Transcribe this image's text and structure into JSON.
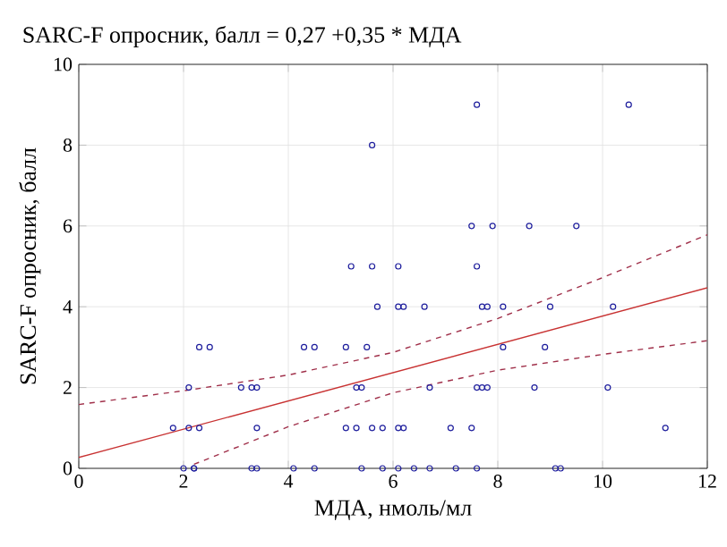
{
  "chart_data": {
    "type": "scatter",
    "title": "SARC-F опросник, балл = 0,27 +0,35 * МДА",
    "xlabel": "МДА, нмоль/мл",
    "ylabel": "SARC-F опросник, балл",
    "xlim": [
      0,
      12
    ],
    "ylim": [
      0,
      10
    ],
    "xticks": [
      0,
      2,
      4,
      6,
      8,
      10,
      12
    ],
    "yticks": [
      0,
      2,
      4,
      6,
      8,
      10
    ],
    "grid": true,
    "series": [
      {
        "marker": "circle",
        "color": "#1c1c9c",
        "x": [
          5.6,
          5.2,
          5.6,
          5.7,
          2.3,
          2.5,
          4.3,
          4.5,
          5.1,
          5.5,
          2.1,
          3.1,
          3.3,
          3.4,
          5.3,
          5.4,
          1.8,
          2.1,
          2.3,
          3.4,
          5.1,
          5.3,
          5.6,
          5.8,
          2.0,
          2.2,
          2.2,
          3.3,
          3.4,
          4.1,
          4.5,
          5.4,
          5.8,
          7.6,
          10.5,
          7.5,
          7.9,
          8.6,
          9.5,
          6.1,
          7.6,
          6.1,
          6.2,
          6.6,
          7.7,
          7.8,
          8.1,
          9.0,
          10.2,
          8.1,
          8.9,
          6.7,
          7.6,
          7.7,
          7.8,
          8.7,
          10.1,
          6.1,
          6.2,
          7.1,
          7.5,
          11.2,
          6.1,
          6.4,
          6.7,
          7.2,
          7.6,
          9.1,
          9.2
        ],
        "values": [
          8,
          5,
          5,
          4,
          3,
          3,
          3,
          3,
          3,
          3,
          2,
          2,
          2,
          2,
          2,
          2,
          1,
          1,
          1,
          1,
          1,
          1,
          1,
          1,
          0,
          0,
          0,
          0,
          0,
          0,
          0,
          0,
          0,
          9,
          9,
          6,
          6,
          6,
          6,
          5,
          5,
          4,
          4,
          4,
          4,
          4,
          4,
          4,
          4,
          3,
          3,
          2,
          2,
          2,
          2,
          2,
          2,
          1,
          1,
          1,
          1,
          1,
          0,
          0,
          0,
          0,
          0,
          0,
          0
        ]
      },
      {
        "type": "line",
        "marker": "none",
        "line_style": "solid",
        "color": "#c83232",
        "x": [
          0,
          12
        ],
        "values": [
          0.27,
          4.47
        ]
      },
      {
        "type": "line",
        "marker": "none",
        "line_style": "dashed",
        "color": "#a0304a",
        "x": [
          0,
          2,
          4,
          6,
          8,
          10,
          12
        ],
        "values": [
          1.58,
          1.92,
          2.31,
          2.87,
          3.71,
          4.72,
          5.78
        ]
      },
      {
        "type": "line",
        "marker": "none",
        "line_style": "dashed",
        "color": "#a0304a",
        "x": [
          2.2,
          4,
          6,
          8,
          10,
          12
        ],
        "values": [
          0.1,
          1.03,
          1.87,
          2.43,
          2.82,
          3.16
        ]
      }
    ]
  }
}
